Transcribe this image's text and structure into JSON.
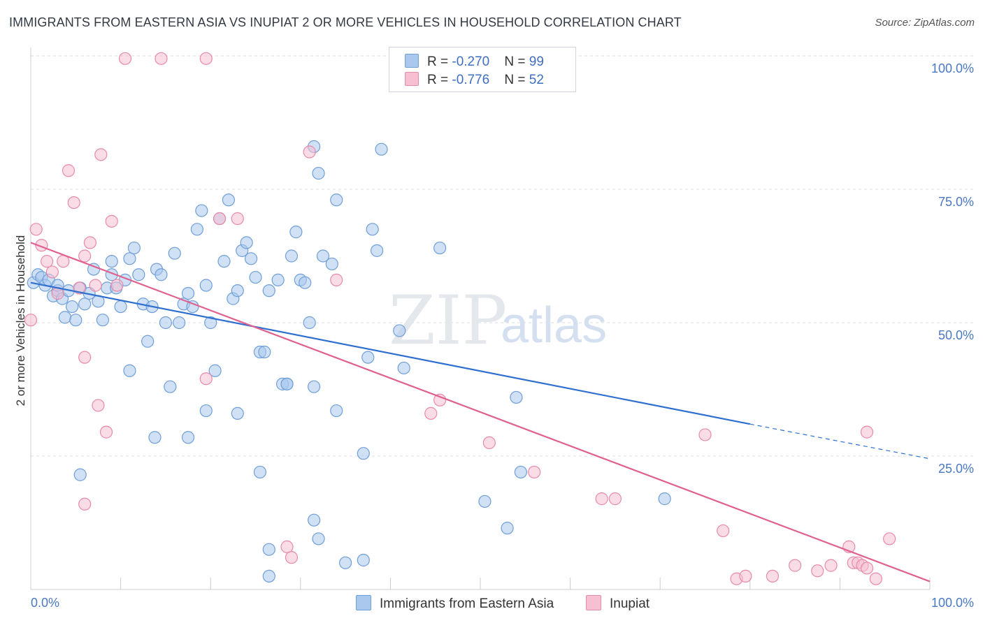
{
  "title": "IMMIGRANTS FROM EASTERN ASIA VS INUPIAT 2 OR MORE VEHICLES IN HOUSEHOLD CORRELATION CHART",
  "source": "Source: ZipAtlas.com",
  "watermark": {
    "zip": "ZIP",
    "atlas": "atlas"
  },
  "colors": {
    "blue_fill": "#aac8ee",
    "blue_stroke": "#6f9fd8",
    "blue_line": "#2f6fd0",
    "pink_fill": "#f6bfd2",
    "pink_stroke": "#e88aa9",
    "pink_line": "#e0608f",
    "axis_text": "#4a78c2",
    "grid": "#d8dce2"
  },
  "legend": {
    "blue": {
      "r_label": "R = ",
      "r_value": "-0.270",
      "n_label": "N = ",
      "n_value": "99"
    },
    "pink": {
      "r_label": "R = ",
      "r_value": "-0.776",
      "n_label": "N = ",
      "n_value": "52"
    }
  },
  "bottom_legend": {
    "blue": "Immigrants from Eastern Asia",
    "pink": "Inupiat"
  },
  "chart_data": {
    "type": "scatter",
    "xlabel": "",
    "ylabel": "2 or more Vehicles in Household",
    "xlim": [
      0,
      100
    ],
    "ylim": [
      0,
      100
    ],
    "x_tick_labels": [
      "0.0%",
      "100.0%"
    ],
    "y_ticks": [
      25,
      50,
      75,
      100
    ],
    "y_tick_labels": [
      "25.0%",
      "50.0%",
      "75.0%",
      "100.0%"
    ],
    "series": [
      {
        "name": "Immigrants from Eastern Asia",
        "color": "blue",
        "trend": {
          "x0": 0,
          "y0": 57.5,
          "x1": 80,
          "y1": 31.0,
          "dash_to_x": 100,
          "dash_to_y": 24.5
        },
        "points": [
          [
            0.3,
            57.5
          ],
          [
            0.8,
            59
          ],
          [
            1.2,
            58.5
          ],
          [
            1.6,
            57
          ],
          [
            2.0,
            58
          ],
          [
            2.5,
            55
          ],
          [
            3.0,
            56
          ],
          [
            3.5,
            54.5
          ],
          [
            3.8,
            51
          ],
          [
            4.2,
            56
          ],
          [
            4.6,
            53
          ],
          [
            5.0,
            50.5
          ],
          [
            5.5,
            56.5
          ],
          [
            6.0,
            53.5
          ],
          [
            6.5,
            55.5
          ],
          [
            7.0,
            60
          ],
          [
            7.5,
            54
          ],
          [
            8.0,
            50.5
          ],
          [
            8.5,
            56.5
          ],
          [
            9.0,
            61.5
          ],
          [
            9.5,
            56.5
          ],
          [
            10.0,
            53
          ],
          [
            10.5,
            58
          ],
          [
            11.0,
            62
          ],
          [
            11.5,
            64
          ],
          [
            12.0,
            59
          ],
          [
            12.5,
            53.5
          ],
          [
            13.0,
            46.5
          ],
          [
            13.5,
            53
          ],
          [
            14.0,
            60
          ],
          [
            14.5,
            59
          ],
          [
            15.0,
            50
          ],
          [
            15.5,
            38
          ],
          [
            16.0,
            63
          ],
          [
            16.5,
            50
          ],
          [
            17.0,
            53.5
          ],
          [
            17.5,
            55.5
          ],
          [
            18.0,
            53
          ],
          [
            18.5,
            67.5
          ],
          [
            19.0,
            71
          ],
          [
            19.5,
            57
          ],
          [
            20.0,
            50
          ],
          [
            20.5,
            41
          ],
          [
            21.0,
            69.5
          ],
          [
            21.5,
            61.5
          ],
          [
            22.0,
            73
          ],
          [
            22.5,
            54.5
          ],
          [
            23.0,
            56
          ],
          [
            23.5,
            63.5
          ],
          [
            24.0,
            65
          ],
          [
            24.5,
            62
          ],
          [
            25.0,
            58.5
          ],
          [
            25.5,
            44.5
          ],
          [
            26.0,
            44.5
          ],
          [
            26.5,
            56
          ],
          [
            27.5,
            58
          ],
          [
            28.0,
            38.5
          ],
          [
            28.5,
            38.5
          ],
          [
            29.0,
            62.5
          ],
          [
            29.5,
            67
          ],
          [
            30.0,
            58
          ],
          [
            30.5,
            57.5
          ],
          [
            31.0,
            50
          ],
          [
            31.5,
            83
          ],
          [
            32.0,
            78
          ],
          [
            32.5,
            62.5
          ],
          [
            33.5,
            61
          ],
          [
            34.0,
            73
          ],
          [
            37.5,
            43.5
          ],
          [
            38.0,
            67.5
          ],
          [
            38.5,
            63.5
          ],
          [
            39.0,
            82.5
          ],
          [
            41.0,
            48.5
          ],
          [
            41.5,
            41.5
          ],
          [
            45.5,
            64
          ],
          [
            54.0,
            36
          ],
          [
            3.0,
            57
          ],
          [
            5.5,
            21.5
          ],
          [
            9.0,
            59
          ],
          [
            11.0,
            41
          ],
          [
            13.8,
            28.5
          ],
          [
            17.5,
            28.5
          ],
          [
            19.5,
            33.5
          ],
          [
            23.0,
            33
          ],
          [
            25.5,
            22
          ],
          [
            26.5,
            2.5
          ],
          [
            26.5,
            7.5
          ],
          [
            28.5,
            38.5
          ],
          [
            31.5,
            38
          ],
          [
            31.5,
            13
          ],
          [
            32.0,
            9.5
          ],
          [
            34.0,
            33.5
          ],
          [
            35.0,
            5
          ],
          [
            37.0,
            25.5
          ],
          [
            37.0,
            5.5
          ],
          [
            50.5,
            16.5
          ],
          [
            53.0,
            11.5
          ],
          [
            54.5,
            22
          ],
          [
            70.5,
            17
          ]
        ]
      },
      {
        "name": "Inupiat",
        "color": "pink",
        "trend": {
          "x0": 0,
          "y0": 65.0,
          "x1": 100,
          "y1": 1.5
        },
        "points": [
          [
            0.0,
            50.5
          ],
          [
            0.6,
            67.5
          ],
          [
            1.2,
            64.5
          ],
          [
            1.8,
            61.5
          ],
          [
            2.4,
            59.5
          ],
          [
            3.0,
            55.5
          ],
          [
            3.6,
            61.5
          ],
          [
            4.2,
            78.5
          ],
          [
            4.8,
            72.5
          ],
          [
            5.4,
            56.5
          ],
          [
            6.0,
            62.5
          ],
          [
            6.6,
            65
          ],
          [
            7.2,
            57
          ],
          [
            7.8,
            81.5
          ],
          [
            8.4,
            29.5
          ],
          [
            9.0,
            69
          ],
          [
            9.6,
            57
          ],
          [
            10.5,
            99.5
          ],
          [
            14.5,
            99.5
          ],
          [
            19.5,
            99.5
          ],
          [
            21.0,
            69.5
          ],
          [
            28.5,
            8
          ],
          [
            29.0,
            6
          ],
          [
            31.0,
            82
          ],
          [
            34.0,
            58
          ],
          [
            6.0,
            43.5
          ],
          [
            7.5,
            34.5
          ],
          [
            6.0,
            16
          ],
          [
            19.5,
            39.5
          ],
          [
            23.0,
            69.5
          ],
          [
            44.5,
            33
          ],
          [
            45.5,
            35.5
          ],
          [
            51.0,
            27.5
          ],
          [
            56.0,
            22
          ],
          [
            63.5,
            17
          ],
          [
            65.0,
            17
          ],
          [
            75.0,
            29
          ],
          [
            77.0,
            11
          ],
          [
            78.5,
            2
          ],
          [
            79.5,
            2.5
          ],
          [
            82.5,
            2.5
          ],
          [
            85.0,
            4.5
          ],
          [
            87.5,
            3.5
          ],
          [
            89.0,
            4.5
          ],
          [
            91.0,
            8
          ],
          [
            91.5,
            5
          ],
          [
            92.0,
            5
          ],
          [
            92.5,
            4.5
          ],
          [
            93.0,
            4
          ],
          [
            94.0,
            2
          ],
          [
            95.5,
            9.5
          ],
          [
            93.0,
            29.5
          ]
        ]
      }
    ]
  }
}
